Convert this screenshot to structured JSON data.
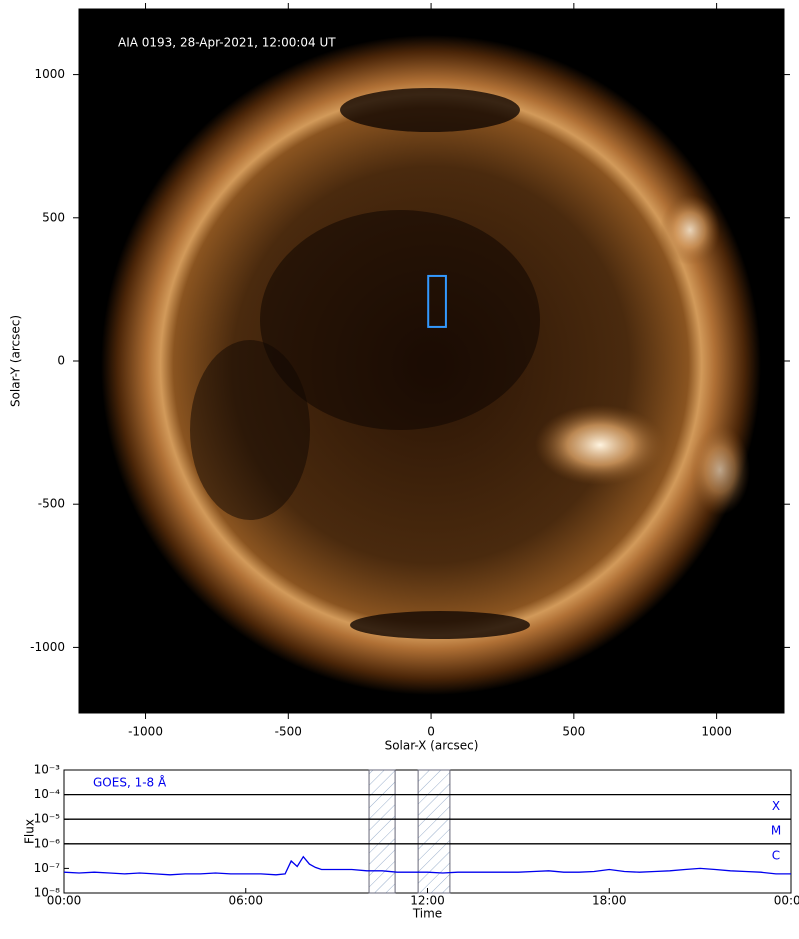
{
  "chart_data": [
    {
      "type": "image",
      "annotation": "AIA 0193, 28-Apr-2021, 12:00:04 UT",
      "xlabel": "Solar-X (arcsec)",
      "ylabel": "Solar-Y (arcsec)",
      "xlim": [
        -1233,
        1236
      ],
      "ylim": [
        -1229,
        1229
      ],
      "xticks": [
        -1000,
        -500,
        0,
        500,
        1000
      ],
      "yticks": [
        -1000,
        -500,
        0,
        500,
        1000
      ],
      "box": {
        "x": [
          -10,
          52
        ],
        "y": [
          119,
          297
        ],
        "color": "#3399ff"
      }
    },
    {
      "type": "line",
      "annotation": "GOES, 1-8 Å",
      "xlabel": "Time",
      "ylabel": "Flux",
      "log_y": true,
      "color": "#0000ee",
      "xlim": [
        0,
        24
      ],
      "xticks": [
        {
          "value": 0,
          "label": "00:00"
        },
        {
          "value": 6,
          "label": "06:00"
        },
        {
          "value": 12,
          "label": "12:00"
        },
        {
          "value": 18,
          "label": "18:00"
        },
        {
          "value": 24,
          "label": "00:00"
        }
      ],
      "ylim": [
        1e-08,
        0.001
      ],
      "yticks": [
        {
          "value": 1e-08,
          "label": "10⁻⁸"
        },
        {
          "value": 1e-07,
          "label": "10⁻⁷"
        },
        {
          "value": 1e-06,
          "label": "10⁻⁶"
        },
        {
          "value": 1e-05,
          "label": "10⁻⁵"
        },
        {
          "value": 0.0001,
          "label": "10⁻⁴"
        },
        {
          "value": 0.001,
          "label": "10⁻³"
        }
      ],
      "levels": [
        {
          "value": 0.0001,
          "label": "X"
        },
        {
          "value": 1e-05,
          "label": "M"
        },
        {
          "value": 1e-06,
          "label": "C"
        }
      ],
      "spans": [
        [
          10.07,
          10.93
        ],
        [
          11.69,
          12.74
        ]
      ],
      "x": [
        0,
        0.5,
        1,
        1.5,
        2,
        2.5,
        3,
        3.5,
        4,
        4.5,
        5,
        5.5,
        6,
        6.5,
        7,
        7.3,
        7.5,
        7.7,
        7.9,
        8.1,
        8.3,
        8.5,
        9,
        9.5,
        10,
        10.5,
        11,
        11.5,
        12,
        12.5,
        13,
        13.5,
        14,
        14.5,
        15,
        15.5,
        16,
        16.5,
        17,
        17.5,
        18,
        18.5,
        19,
        19.5,
        20,
        20.5,
        21,
        21.5,
        22,
        22.5,
        23,
        23.5,
        24
      ],
      "values": [
        7e-08,
        6.5e-08,
        7e-08,
        6.5e-08,
        6e-08,
        6.5e-08,
        6e-08,
        5.5e-08,
        6e-08,
        6e-08,
        6.5e-08,
        6e-08,
        6e-08,
        6e-08,
        5.5e-08,
        6e-08,
        2e-07,
        1.2e-07,
        3e-07,
        1.5e-07,
        1.1e-07,
        9e-08,
        9e-08,
        9e-08,
        8e-08,
        8e-08,
        7e-08,
        7e-08,
        7e-08,
        6.5e-08,
        7e-08,
        7e-08,
        7e-08,
        7e-08,
        7e-08,
        7.5e-08,
        8e-08,
        7e-08,
        7e-08,
        7.5e-08,
        9e-08,
        7.5e-08,
        7e-08,
        7.5e-08,
        8e-08,
        9e-08,
        1e-07,
        9e-08,
        8e-08,
        7.5e-08,
        7e-08,
        6e-08,
        6e-08
      ]
    }
  ]
}
